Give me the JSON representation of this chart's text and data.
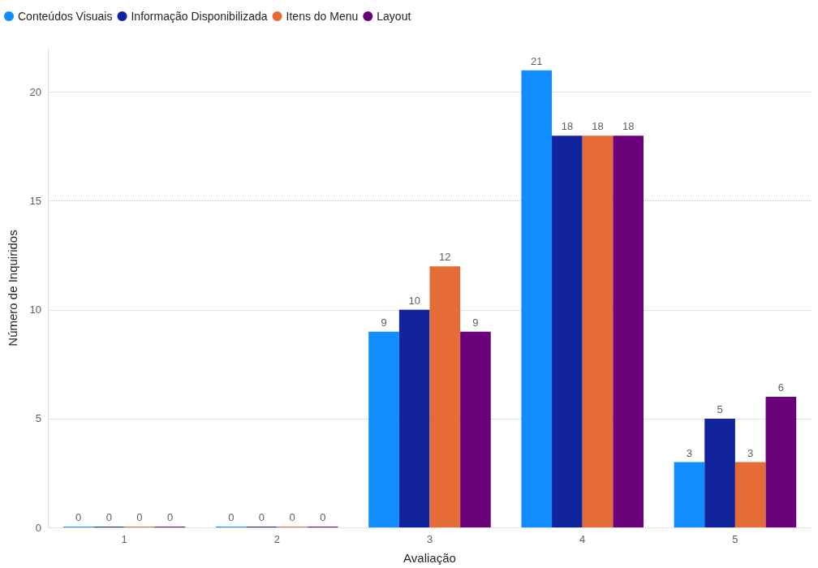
{
  "chart_data": {
    "type": "bar",
    "xlabel": "Avaliação",
    "ylabel": "Número de Inquiridos",
    "categories": [
      "1",
      "2",
      "3",
      "4",
      "5"
    ],
    "series": [
      {
        "name": "Conteúdos Visuais",
        "color": "#118dff",
        "values": [
          0,
          0,
          9,
          21,
          3
        ]
      },
      {
        "name": "Informação Disponibilizada",
        "color": "#12239e",
        "values": [
          0,
          0,
          10,
          18,
          5
        ]
      },
      {
        "name": "Itens do Menu",
        "color": "#e66c37",
        "values": [
          0,
          0,
          12,
          18,
          3
        ]
      },
      {
        "name": "Layout",
        "color": "#6b007b",
        "values": [
          0,
          0,
          9,
          18,
          6
        ]
      }
    ],
    "ylim": [
      0,
      22
    ],
    "yticks": [
      0,
      5,
      10,
      15,
      20
    ],
    "grid": "y",
    "legend": "top left",
    "data_labels": true
  }
}
